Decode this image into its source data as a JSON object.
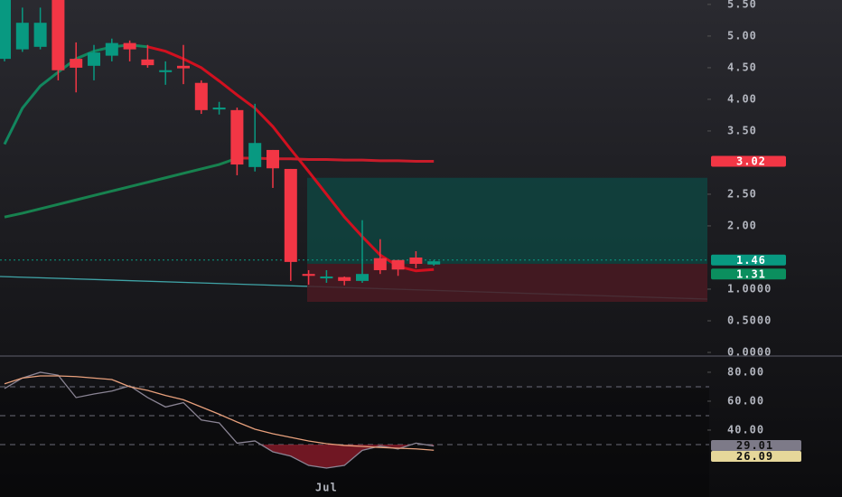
{
  "chart_data": [
    {
      "type": "candlestick",
      "categories": [
        null,
        null,
        null,
        null,
        null,
        null,
        null,
        null,
        null,
        null,
        null,
        null,
        null,
        null,
        null,
        null,
        null,
        null,
        null,
        null,
        null,
        null,
        null,
        null,
        null
      ],
      "open": [
        4.64,
        4.79,
        4.83,
        5.57,
        4.64,
        4.53,
        4.69,
        4.89,
        4.63,
        4.43,
        4.53,
        4.26,
        3.84,
        3.83,
        2.93,
        3.2,
        2.9,
        1.24,
        1.17,
        1.19,
        1.13,
        1.49,
        1.46,
        1.5,
        1.39
      ],
      "high": [
        5.57,
        5.45,
        5.45,
        5.57,
        4.9,
        4.86,
        4.96,
        4.93,
        4.86,
        4.6,
        4.86,
        4.3,
        3.96,
        3.87,
        3.93,
        3.2,
        2.9,
        1.3,
        1.3,
        1.2,
        2.09,
        1.79,
        1.46,
        1.6,
        1.46
      ],
      "low": [
        4.6,
        4.75,
        4.79,
        4.3,
        4.11,
        4.3,
        4.6,
        4.6,
        4.5,
        4.23,
        4.24,
        3.77,
        3.76,
        2.8,
        2.86,
        2.6,
        1.13,
        1.07,
        1.1,
        1.06,
        1.1,
        1.24,
        1.21,
        1.33,
        1.37
      ],
      "close": [
        5.57,
        5.21,
        5.21,
        4.46,
        4.5,
        4.74,
        4.89,
        4.79,
        4.54,
        4.46,
        4.49,
        3.83,
        3.87,
        2.97,
        3.31,
        2.91,
        1.43,
        1.21,
        1.2,
        1.13,
        1.24,
        1.3,
        1.31,
        1.4,
        1.44
      ],
      "up_color": "#089981",
      "down_color": "#f23645",
      "series": [
        {
          "color": "#12865e",
          "values": [
            3.29,
            3.86,
            4.21,
            4.43,
            4.64,
            4.76,
            4.83,
            4.86,
            4.83,
            null,
            null,
            null,
            null,
            null,
            null,
            null,
            null,
            null,
            null,
            null,
            null,
            null,
            null,
            null,
            null
          ]
        },
        {
          "color": "#d1101f",
          "values": [
            null,
            null,
            null,
            null,
            null,
            null,
            null,
            null,
            4.83,
            4.76,
            4.64,
            4.5,
            4.29,
            4.07,
            3.86,
            3.57,
            3.21,
            2.86,
            2.5,
            2.14,
            1.83,
            1.54,
            1.36,
            1.29,
            1.31
          ]
        },
        {
          "color": "#17824f",
          "values": [
            2.14,
            2.2,
            2.27,
            2.34,
            2.41,
            2.48,
            2.55,
            2.62,
            2.69,
            2.76,
            2.83,
            2.9,
            2.97,
            3.07,
            null,
            null,
            null,
            null,
            null,
            null,
            null,
            null,
            null,
            null,
            null
          ]
        },
        {
          "color": "#c81c2a",
          "values": [
            null,
            null,
            null,
            null,
            null,
            null,
            null,
            null,
            null,
            null,
            null,
            null,
            null,
            3.07,
            3.07,
            3.06,
            3.06,
            3.05,
            3.05,
            3.04,
            3.04,
            3.03,
            3.03,
            3.02,
            3.02
          ]
        }
      ],
      "target_zone": [
        1.4,
        2.76
      ],
      "stop_zone": [
        0.8,
        1.4
      ],
      "markers": {
        "values": [
          3.02,
          1.46,
          1.31
        ],
        "colors": [
          "#f23645",
          "#089981",
          "#0b8f5e"
        ]
      },
      "ylim": [
        0,
        5.57
      ],
      "yticks": [
        {
          "value": 5.5,
          "label": "5.50"
        },
        {
          "value": 5,
          "label": "5.00"
        },
        {
          "value": 4.5,
          "label": "4.50"
        },
        {
          "value": 4,
          "label": "4.00"
        },
        {
          "value": 3.5,
          "label": "3.50"
        },
        {
          "value": 2.5,
          "label": "2.50"
        },
        {
          "value": 2,
          "label": "2.00"
        },
        {
          "value": 1,
          "label": "1.0000"
        },
        {
          "value": 0.5,
          "label": "0.5000"
        },
        {
          "value": 0,
          "label": "0.0000"
        }
      ]
    },
    {
      "type": "line",
      "categories": [
        null,
        null,
        null,
        null,
        null,
        null,
        null,
        null,
        null,
        null,
        null,
        null,
        null,
        null,
        null,
        null,
        null,
        null,
        "Jul",
        null,
        null,
        null,
        null,
        null,
        null
      ],
      "series": [
        {
          "color": "#8a8494",
          "values": [
            68.75,
            76,
            80,
            78,
            62.5,
            65,
            67,
            70.6,
            62.5,
            56,
            59,
            47,
            45,
            31,
            32.5,
            25,
            22,
            15.6,
            13.75,
            15.6,
            26,
            29,
            27,
            31,
            29.01
          ]
        },
        {
          "color": "#e8a07c",
          "values": [
            72,
            76,
            77.5,
            77.5,
            77,
            76,
            75,
            70,
            67.5,
            64,
            61,
            56,
            51,
            45.6,
            40.6,
            37.5,
            35,
            32.5,
            30.6,
            29.4,
            28.75,
            28,
            27.5,
            27,
            26.09
          ]
        }
      ],
      "label_colors": [
        "#7d7a88",
        "#e6d79a"
      ],
      "levels": [
        70,
        50,
        30
      ],
      "ylim": [
        -6.25,
        90.6
      ],
      "yticks": [
        {
          "value": 80,
          "label": "80.00"
        },
        {
          "value": 60,
          "label": "60.00"
        },
        {
          "value": 40,
          "label": "40.00"
        }
      ]
    }
  ]
}
